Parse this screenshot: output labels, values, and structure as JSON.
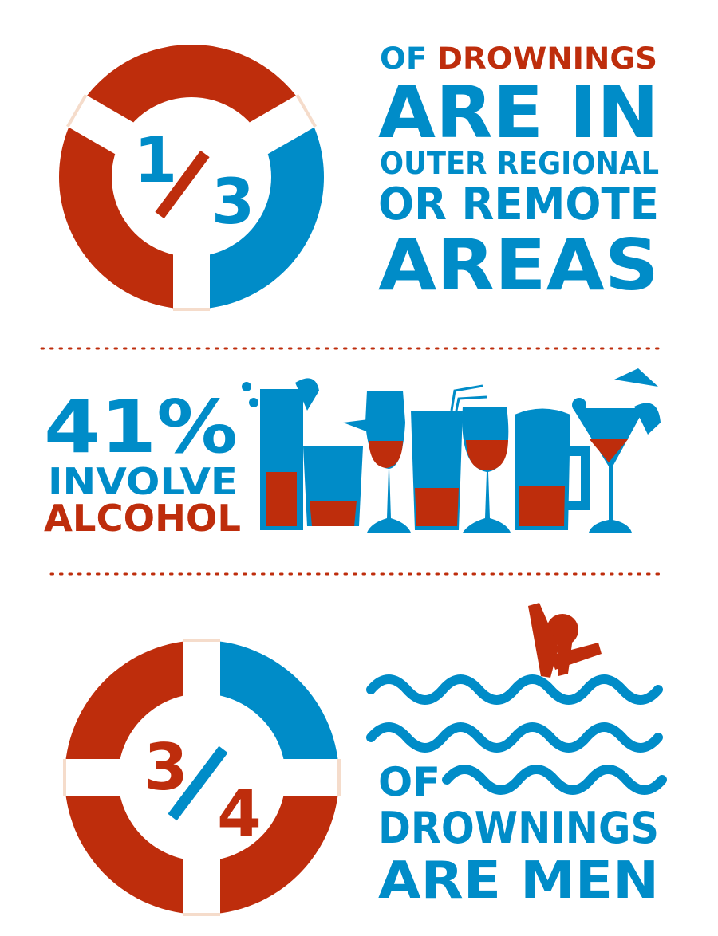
{
  "colors": {
    "red": "#be2d0c",
    "blue": "#008cc8",
    "band_edge": "#f5dccb"
  },
  "section1": {
    "numerator": "1",
    "denominator": "3",
    "line1_a": "OF",
    "line1_b": "DROWNINGS",
    "line2": "ARE IN",
    "line3": "OUTER REGIONAL",
    "line4": "OR REMOTE",
    "line5": "AREAS",
    "icon": "lifebuoy-icon"
  },
  "section2": {
    "percent": "41%",
    "line1": "INVOLVE",
    "line2": "ALCOHOL",
    "icon": "cocktail-glasses-icon"
  },
  "section3": {
    "numerator": "3",
    "denominator": "4",
    "line1": "OF",
    "line2": "DROWNINGS",
    "line3": "ARE MEN",
    "icons": [
      "lifebuoy-icon",
      "waves-icon",
      "swimmer-icon"
    ]
  }
}
